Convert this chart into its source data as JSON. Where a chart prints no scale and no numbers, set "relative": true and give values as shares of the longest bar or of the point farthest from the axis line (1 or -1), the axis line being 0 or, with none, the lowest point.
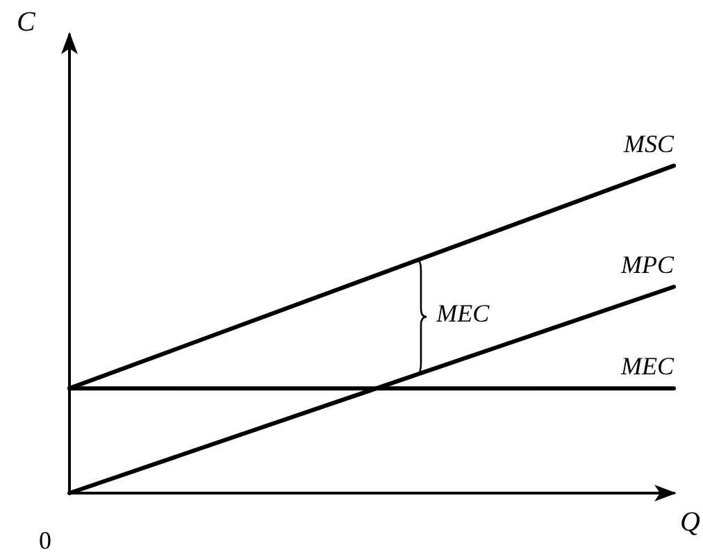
{
  "chart_data": {
    "type": "line",
    "relative": true,
    "xlabel": "Q",
    "ylabel": "C",
    "categories": [
      null,
      null
    ],
    "series": [
      {
        "name": "MSC",
        "color": "#000000",
        "values": [
          0.32,
          1
        ]
      },
      {
        "name": "MPC",
        "color": "#000000",
        "values": [
          0,
          0.63
        ]
      },
      {
        "name": "MEC",
        "color": "#000000",
        "values": [
          0.32,
          0.32
        ]
      }
    ],
    "annotations": [
      "MEC",
      "0"
    ],
    "legend": false,
    "grid": false,
    "marker": "none",
    "line_style": "solid"
  }
}
